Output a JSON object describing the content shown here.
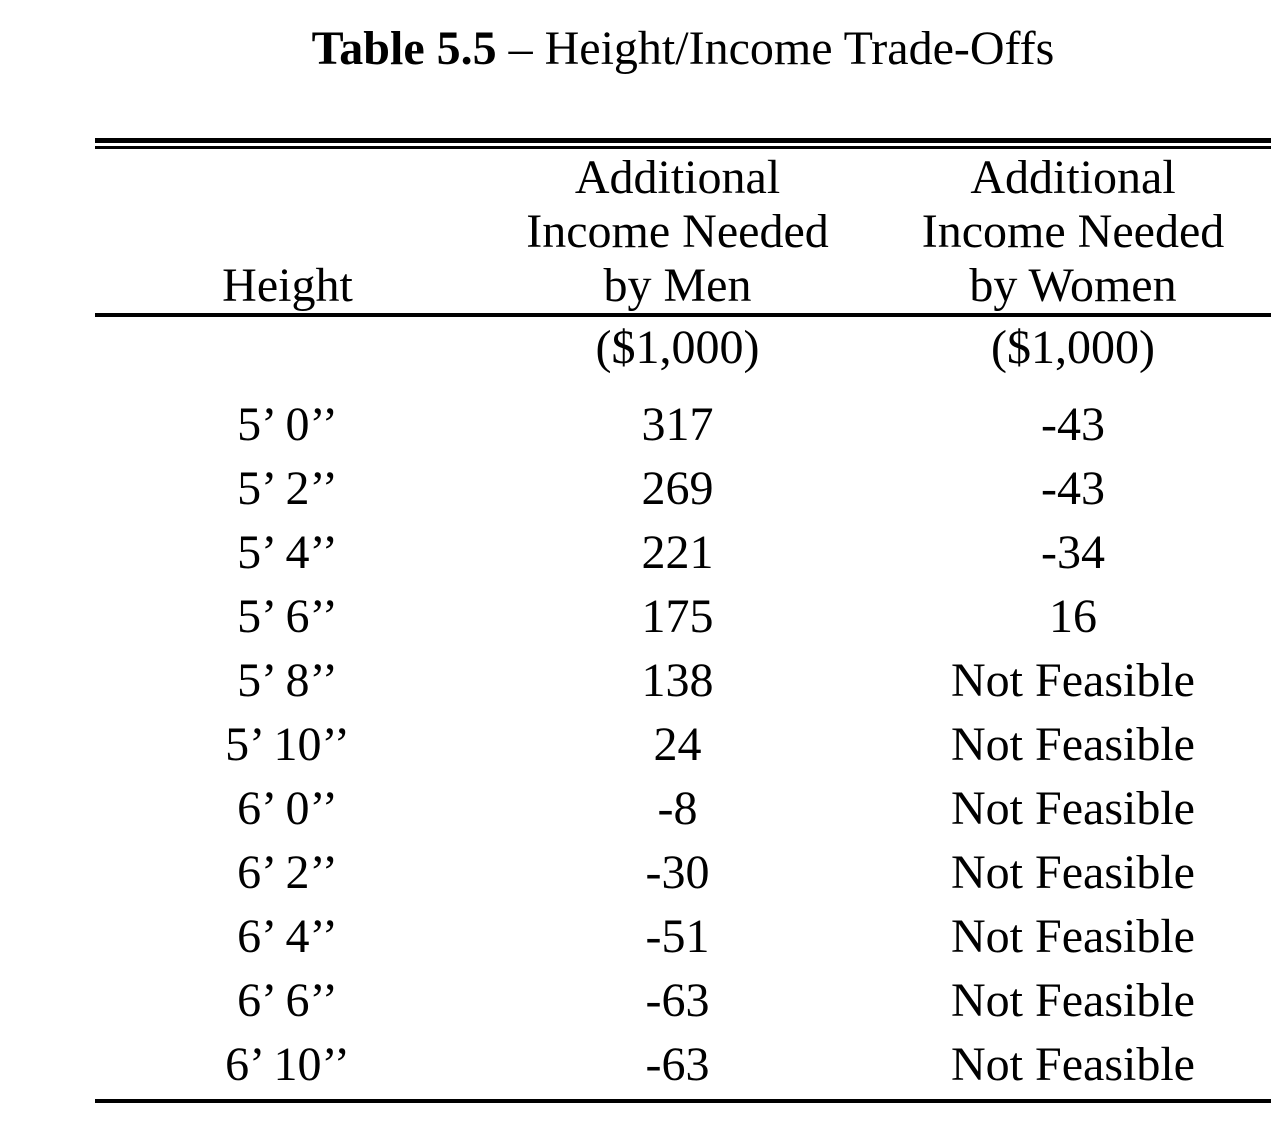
{
  "title": {
    "bold": "Table 5.5",
    "rest": " – Height/Income Trade-Offs"
  },
  "table": {
    "height_header": "Height",
    "men_header": [
      "Additional",
      "Income Needed",
      "by Men"
    ],
    "women_header": [
      "Additional",
      "Income Needed",
      "by Women"
    ],
    "men_units": "($1,000)",
    "women_units": "($1,000)",
    "rows": [
      {
        "height": "5’ 0’’",
        "men": "317",
        "women": "-43"
      },
      {
        "height": "5’ 2’’",
        "men": "269",
        "women": "-43"
      },
      {
        "height": "5’ 4’’",
        "men": "221",
        "women": "-34"
      },
      {
        "height": "5’ 6’’",
        "men": "175",
        "women": "16"
      },
      {
        "height": "5’ 8’’",
        "men": "138",
        "women": "Not Feasible"
      },
      {
        "height": "5’ 10’’",
        "men": "24",
        "women": "Not Feasible"
      },
      {
        "height": "6’ 0’’",
        "men": "-8",
        "women": "Not Feasible"
      },
      {
        "height": "6’ 2’’",
        "men": "-30",
        "women": "Not Feasible"
      },
      {
        "height": "6’ 4’’",
        "men": "-51",
        "women": "Not Feasible"
      },
      {
        "height": "6’ 6’’",
        "men": "-63",
        "women": "Not Feasible"
      },
      {
        "height": "6’ 10’’",
        "men": "-63",
        "women": "Not Feasible"
      }
    ],
    "text_color": "#000000",
    "background_color": "#ffffff"
  }
}
